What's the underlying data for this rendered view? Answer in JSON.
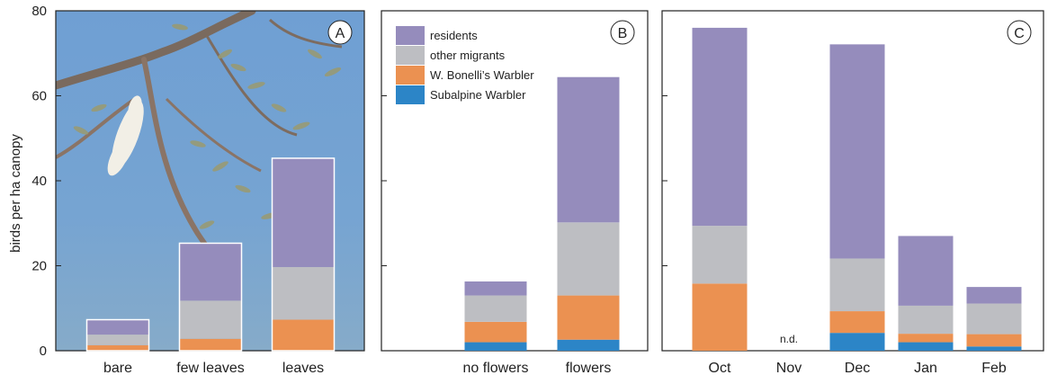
{
  "chart_data": {
    "type": "bar",
    "stacked": true,
    "ylabel": "birds per ha canopy",
    "ylim": [
      0,
      80
    ],
    "yticks": [
      0,
      20,
      40,
      60,
      80
    ],
    "colors": {
      "residents": "#958cbc",
      "other_migrants": "#bdbec2",
      "bonelli": "#eb9151",
      "subalpine": "#2c85c7",
      "photo_sky": "#6f9fd0"
    },
    "legend": {
      "position": "top-left of panel B",
      "entries": [
        {
          "key": "residents",
          "label": "residents"
        },
        {
          "key": "other_migrants",
          "label": "other migrants"
        },
        {
          "key": "bonelli",
          "label": "W. Bonelli’s Warbler"
        },
        {
          "key": "subalpine",
          "label": "Subalpine Warbler"
        }
      ]
    },
    "panels": [
      {
        "letter": "A",
        "background": "photo",
        "categories": [
          "bare",
          "few leaves",
          "leaves"
        ],
        "series": [
          {
            "key": "subalpine",
            "values": [
              0,
              0,
              0
            ]
          },
          {
            "key": "bonelli",
            "values": [
              1.3,
              2.8,
              7.3
            ]
          },
          {
            "key": "other_migrants",
            "values": [
              2.5,
              9.0,
              12.4
            ]
          },
          {
            "key": "residents",
            "values": [
              3.5,
              13.5,
              25.6
            ]
          }
        ]
      },
      {
        "letter": "B",
        "background": "white",
        "categories": [
          "no flowers",
          "flowers"
        ],
        "series": [
          {
            "key": "subalpine",
            "values": [
              2.0,
              2.6
            ]
          },
          {
            "key": "bonelli",
            "values": [
              4.8,
              10.4
            ]
          },
          {
            "key": "other_migrants",
            "values": [
              6.2,
              17.2
            ]
          },
          {
            "key": "residents",
            "values": [
              3.3,
              34.2
            ]
          }
        ]
      },
      {
        "letter": "C",
        "background": "white",
        "categories": [
          "Oct",
          "Nov",
          "Dec",
          "Jan",
          "Feb"
        ],
        "annotations": [
          {
            "category": "Nov",
            "text": "n.d."
          }
        ],
        "series": [
          {
            "key": "subalpine",
            "values": [
              0,
              null,
              4.2,
              2.0,
              1.0
            ]
          },
          {
            "key": "bonelli",
            "values": [
              15.8,
              null,
              5.1,
              2.0,
              2.9
            ]
          },
          {
            "key": "other_migrants",
            "values": [
              13.6,
              null,
              12.4,
              6.6,
              7.2
            ]
          },
          {
            "key": "residents",
            "values": [
              46.6,
              null,
              50.4,
              16.4,
              3.9
            ]
          }
        ]
      }
    ]
  }
}
